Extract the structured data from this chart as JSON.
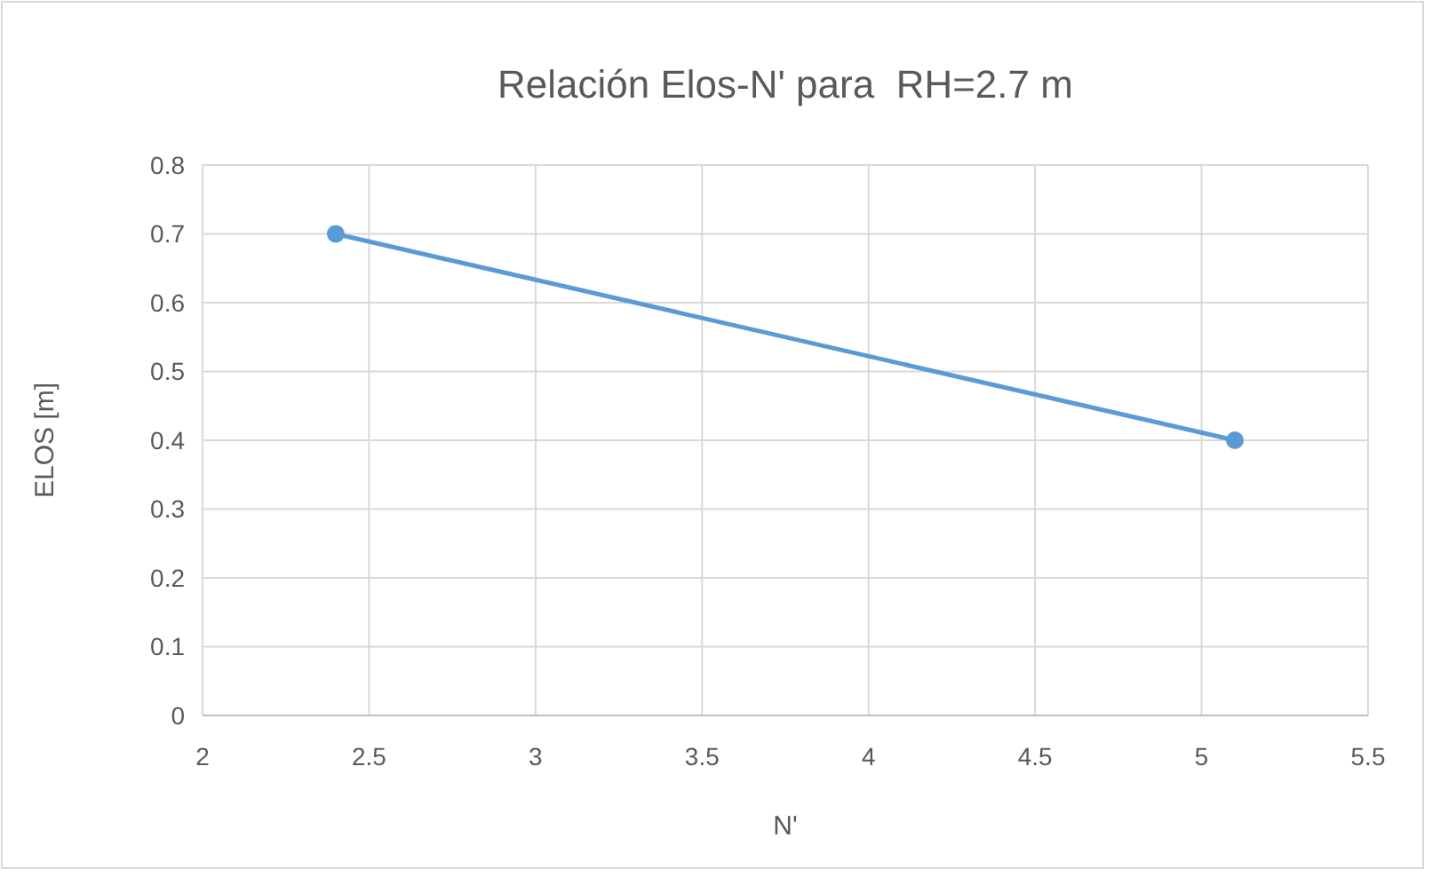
{
  "chart_data": {
    "type": "line",
    "title": "Relación Elos-N' para  RH=2.7 m",
    "xlabel": "N'",
    "ylabel": "ELOS [m]",
    "series": [
      {
        "color": "#5b9bd5",
        "x": [
          2.4,
          5.1
        ],
        "values": [
          0.7,
          0.4
        ]
      }
    ],
    "xlim": [
      2,
      5.5
    ],
    "xticks": [
      2,
      2.5,
      3,
      3.5,
      4,
      4.5,
      5,
      5.5
    ],
    "ylim": [
      0,
      0.8
    ],
    "yticks": [
      0,
      0.1,
      0.2,
      0.3,
      0.4,
      0.5,
      0.6,
      0.7,
      0.8
    ],
    "grid": true,
    "marker": "circle",
    "line_style": "solid"
  }
}
